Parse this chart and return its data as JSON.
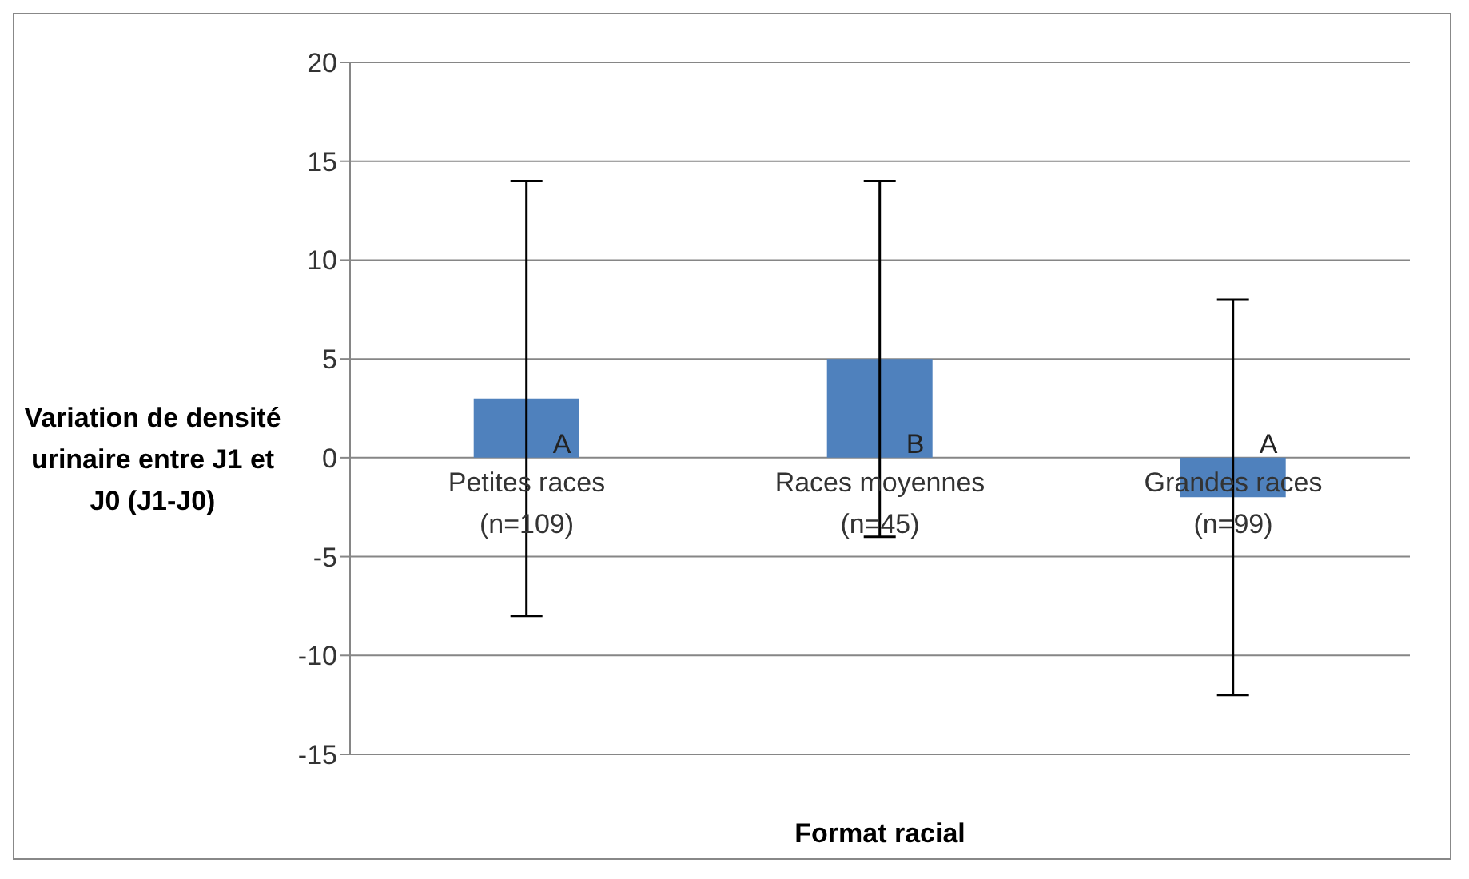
{
  "chart_data": {
    "type": "bar",
    "xlabel": "Format racial",
    "ylabel": "Variation de densité urinaire entre J1 et J0 (J1-J0)",
    "categories": [
      "Petites races (n=109)",
      "Races moyennes (n=45)",
      "Grandes races (n=99)"
    ],
    "series": [
      {
        "color": "#4f81bd",
        "values": [
          3,
          5,
          -2
        ],
        "errors": [
          [
            -8,
            14
          ],
          [
            -4,
            14
          ],
          [
            -12,
            8
          ]
        ]
      }
    ],
    "ylim": [
      -15,
      20
    ],
    "yticks": [
      -15,
      -10,
      -5,
      0,
      5,
      10,
      15,
      20
    ],
    "grid": "y",
    "legend": false,
    "annotations": [
      {
        "text": "A",
        "x": "Petites races (n=109)",
        "y": 0
      },
      {
        "text": "B",
        "x": "Races moyennes (n=45)",
        "y": 0
      },
      {
        "text": "A",
        "x": "Grandes races (n=99)",
        "y": 0
      }
    ]
  }
}
